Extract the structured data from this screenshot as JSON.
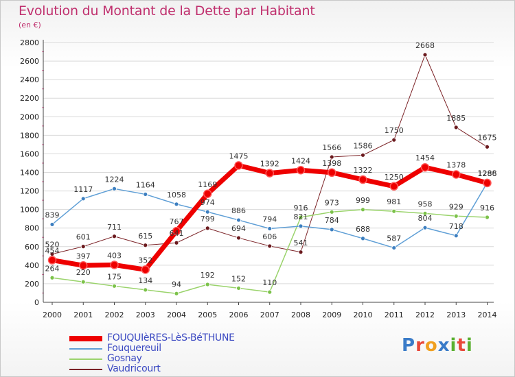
{
  "header": {
    "title": "Evolution du Montant de la Dette par Habitant",
    "subtitle": "(en €)"
  },
  "logo": {
    "text": "Proxiti",
    "letters": [
      {
        "ch": "P",
        "color": "#3a7bc8"
      },
      {
        "ch": "r",
        "color": "#e8483a"
      },
      {
        "ch": "o",
        "color": "#f0a020"
      },
      {
        "ch": "x",
        "color": "#3a7bc8"
      },
      {
        "ch": "i",
        "color": "#5ab030"
      },
      {
        "ch": "t",
        "color": "#e8483a"
      },
      {
        "ch": "i",
        "color": "#5ab030"
      }
    ]
  },
  "chart_data": {
    "type": "line",
    "title": "Evolution du Montant de la Dette par Habitant",
    "ylabel": "(en €)",
    "xlabel": "",
    "ylim": [
      0,
      2800
    ],
    "yticks": [
      0,
      200,
      400,
      600,
      800,
      1000,
      1200,
      1400,
      1600,
      1800,
      2000,
      2200,
      2400,
      2600,
      2800
    ],
    "grid": true,
    "legend_position": "bottom-left",
    "categories": [
      "2000",
      "2001",
      "2002",
      "2003",
      "2004",
      "2005",
      "2006",
      "2007",
      "2008",
      "2009",
      "2010",
      "2011",
      "2012",
      "2013",
      "2014"
    ],
    "series": [
      {
        "name": "Vaudricourt",
        "color": "#7b2226",
        "marker_color": "#6b1a1e",
        "width": 1,
        "values": [
          520,
          601,
          711,
          615,
          641,
          799,
          694,
          606,
          541,
          1566,
          1586,
          1750,
          2668,
          1885,
          1675
        ]
      },
      {
        "name": "Gosnay",
        "color": "#9ad36b",
        "marker_color": "#7cc24a",
        "width": 1.5,
        "values": [
          264,
          220,
          175,
          134,
          94,
          192,
          152,
          110,
          916,
          973,
          999,
          981,
          958,
          929,
          916
        ]
      },
      {
        "name": "Fouquereuil",
        "color": "#5f9fd6",
        "marker_color": "#3d7fc0",
        "width": 1.5,
        "values": [
          839,
          1117,
          1224,
          1164,
          1058,
          974,
          886,
          794,
          821,
          784,
          688,
          587,
          804,
          718,
          1288
        ]
      },
      {
        "name": "FOUQUIèRES-LèS-BéTHUNE",
        "color": "#ee0000",
        "marker_color": "#ee0000",
        "width": 7,
        "values": [
          454,
          397,
          403,
          352,
          767,
          1169,
          1475,
          1392,
          1424,
          1398,
          1322,
          1250,
          1454,
          1378,
          1286
        ]
      }
    ],
    "legend_order": [
      "FOUQUIèRES-LèS-BéTHUNE",
      "Fouquereuil",
      "Gosnay",
      "Vaudricourt"
    ]
  }
}
